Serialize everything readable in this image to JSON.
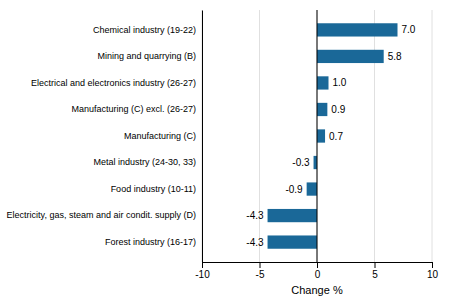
{
  "chart_data": {
    "type": "bar",
    "orientation": "horizontal",
    "categories": [
      "Forest industry (16-17)",
      "Electricity, gas, steam and air condit. supply (D)",
      "Food industry (10-11)",
      "Metal industry (24-30, 33)",
      "Manufacturing (C)",
      "Manufacturing (C) excl. (26-27)",
      "Electrical and electronics industry (26-27)",
      "Mining and quarrying (B)",
      "Chemical industry (19-22)"
    ],
    "values": [
      -4.3,
      -4.3,
      -0.9,
      -0.3,
      0.7,
      0.9,
      1.0,
      5.8,
      7.0
    ],
    "value_labels": [
      "-4.3",
      "-4.3",
      "-0.9",
      "-0.3",
      "0.7",
      "0.9",
      "1.0",
      "5.8",
      "7.0"
    ],
    "data_labels": true,
    "color": "#1a6898",
    "xlabel": "Change %",
    "xlim": [
      -10,
      10
    ],
    "xticks": [
      -10,
      -5,
      0,
      5,
      10
    ],
    "grid": true
  }
}
